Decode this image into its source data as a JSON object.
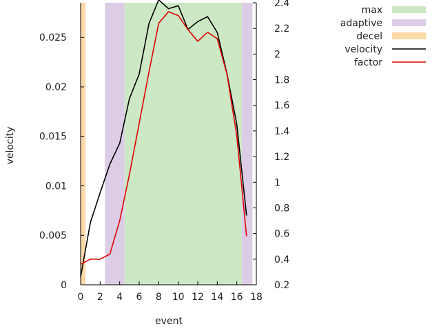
{
  "chart_data": {
    "type": "line",
    "xlabel": "event",
    "ylabel": "velocity",
    "xlim": [
      0,
      18
    ],
    "ylim_left": [
      0,
      0.0285
    ],
    "ylim_right": [
      0.2,
      2.4
    ],
    "x_ticks": [
      0,
      2,
      4,
      6,
      8,
      10,
      12,
      14,
      16,
      18
    ],
    "y_ticks_left": [
      0,
      0.005,
      0.01,
      0.015,
      0.02,
      0.025
    ],
    "y_ticks_right": [
      0.2,
      0.4,
      0.6,
      0.8,
      1,
      1.2,
      1.4,
      1.6,
      1.8,
      2,
      2.2,
      2.4
    ],
    "grid": false,
    "legend_position": "top-right, outside plot",
    "bands": [
      {
        "name": "decel",
        "from": 0,
        "to": 0.5,
        "color": "#fdd9a8"
      },
      {
        "name": "adaptive",
        "from": 2.5,
        "to": 4.5,
        "color": "#dccce6"
      },
      {
        "name": "max",
        "from": 4.5,
        "to": 16.5,
        "color": "#cce8c4"
      },
      {
        "name": "adaptive",
        "from": 16.5,
        "to": 17.6,
        "color": "#dccce6"
      }
    ],
    "series": [
      {
        "name": "velocity",
        "axis": "left",
        "color": "#000000",
        "x": [
          0,
          1,
          2,
          3,
          4,
          5,
          6,
          7,
          8,
          9,
          10,
          11,
          12,
          13,
          14,
          15,
          16,
          17
        ],
        "values": [
          0.0008,
          0.0063,
          0.0093,
          0.0122,
          0.0143,
          0.0188,
          0.0213,
          0.0264,
          0.0288,
          0.0279,
          0.0282,
          0.0258,
          0.0266,
          0.0271,
          0.0255,
          0.0213,
          0.0162,
          0.007
        ]
      },
      {
        "name": "factor",
        "axis": "right",
        "color": "#e00000",
        "x": [
          0,
          1,
          2,
          3,
          4,
          5,
          6,
          7,
          8,
          9,
          10,
          11,
          12,
          13,
          14,
          15,
          16,
          17
        ],
        "values": [
          0.36,
          0.4,
          0.4,
          0.44,
          0.7,
          1.06,
          1.46,
          1.86,
          2.24,
          2.33,
          2.3,
          2.19,
          2.1,
          2.17,
          2.12,
          1.84,
          1.36,
          0.58
        ]
      }
    ],
    "legend": [
      {
        "label": "max",
        "kind": "band",
        "color": "#cce8c4"
      },
      {
        "label": "adaptive",
        "kind": "band",
        "color": "#dccce6"
      },
      {
        "label": "decel",
        "kind": "band",
        "color": "#fdd9a8"
      },
      {
        "label": "velocity",
        "kind": "line",
        "color": "#000000"
      },
      {
        "label": "factor",
        "kind": "line",
        "color": "#e00000"
      }
    ]
  }
}
